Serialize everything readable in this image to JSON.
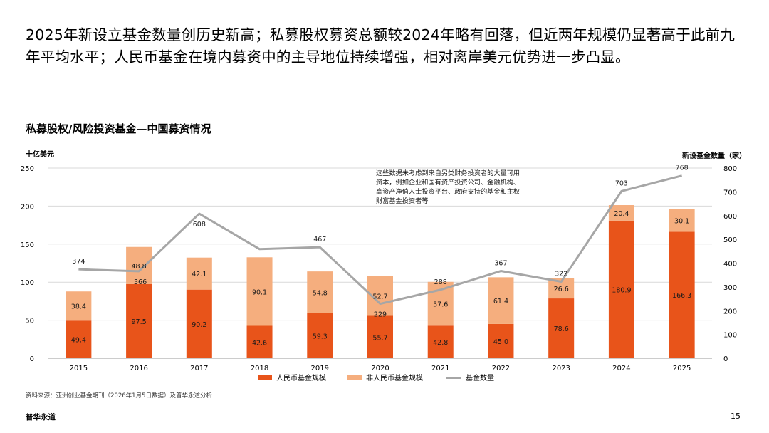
{
  "headline": "2025年新设立基金数量创历史新高；私募股权募资总额较2024年略有回落，但近两年规模仍显著高于此前九年平均水平；人民币基金在境内募资中的主导地位持续增强，相对离岸美元优势进一步凸显。",
  "source": "资料来源：亚洲创业基金期刊（2026年1月5日数据）及普华永道分析",
  "brand": "普华永道",
  "page_number": "15",
  "colors": {
    "rmb": "#E8541A",
    "non_rmb": "#F5AE7E",
    "count_line": "#A6A6A6"
  },
  "chart_data": {
    "type": "bar",
    "stacked": true,
    "title": "私募股权/风险投资基金—中国募资情况",
    "y_left_label": "十亿美元",
    "y_right_label": "新设基金数量（家）",
    "categories": [
      "2015",
      "2016",
      "2017",
      "2018",
      "2019",
      "2020",
      "2021",
      "2022",
      "2023",
      "2024",
      "2025"
    ],
    "y_left_lim": [
      0,
      250
    ],
    "y_left_ticks": [
      0,
      50,
      100,
      150,
      200,
      250
    ],
    "y_right_lim": [
      0,
      800
    ],
    "y_right_ticks": [
      0,
      100,
      200,
      300,
      400,
      500,
      600,
      700,
      800
    ],
    "series": [
      {
        "name": "人民币基金规模",
        "kind": "bar",
        "axis": "left",
        "color": "#E8541A",
        "values": [
          49.4,
          97.5,
          90.2,
          42.6,
          59.3,
          55.7,
          42.8,
          45.0,
          78.6,
          180.9,
          166.3
        ],
        "labels": [
          "49.4",
          "97.5",
          "90.2",
          "42.6",
          "59.3",
          "55.7",
          "42.8",
          "45.0",
          "78.6",
          "180.9",
          "166.3"
        ]
      },
      {
        "name": "非人民币基金规模",
        "kind": "bar",
        "axis": "left",
        "color": "#F5AE7E",
        "values": [
          38.4,
          48.8,
          42.1,
          90.1,
          54.8,
          52.7,
          57.6,
          61.4,
          26.6,
          20.4,
          30.1
        ],
        "labels": [
          "38.4",
          "48.8",
          "42.1",
          "90.1",
          "54.8",
          "52.7",
          "57.6",
          "61.4",
          "26.6",
          "20.4",
          "30.1"
        ]
      },
      {
        "name": "基金数量",
        "kind": "line",
        "axis": "right",
        "color": "#A6A6A6",
        "values": [
          374,
          366,
          608,
          459,
          467,
          229,
          288,
          367,
          322,
          703,
          768
        ],
        "labels": [
          "374",
          "366",
          "608",
          "",
          "467",
          "229",
          "288",
          "367",
          "322",
          "703",
          "768"
        ]
      }
    ],
    "annotation": [
      "这些数据未考虑到来自另类财务投资者的大量可用",
      "资本，例如企业和国有资产投资公司、金融机构、",
      "高资产净值人士投资平台、政府支持的基金和主权",
      "财富基金投资者等"
    ],
    "legend_position": "bottom",
    "grid": true
  }
}
